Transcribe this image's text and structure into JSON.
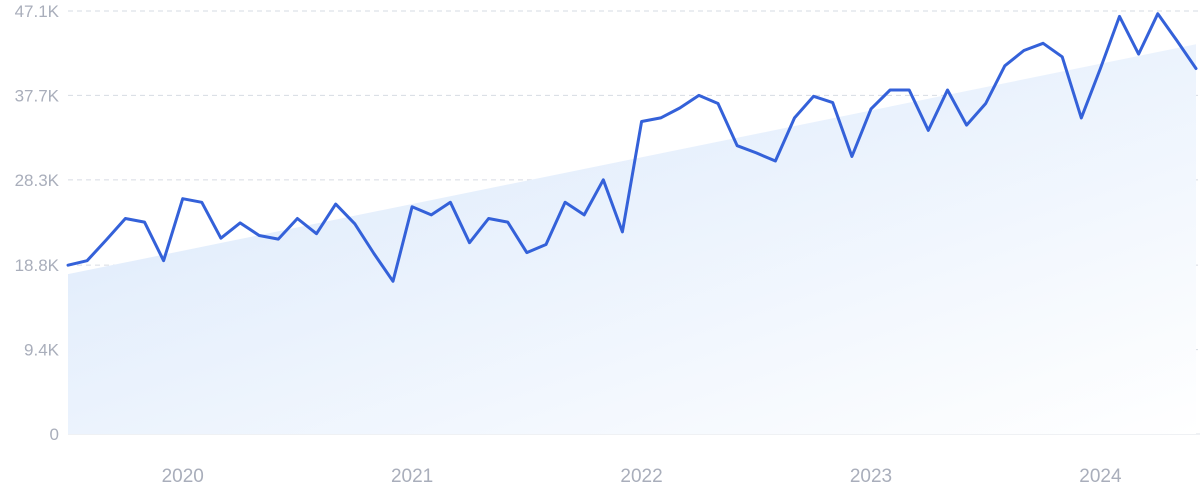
{
  "chart_data": {
    "type": "line",
    "title": "",
    "xlabel": "",
    "ylabel": "",
    "ylim": [
      0,
      47100
    ],
    "xlim": [
      "2019-07",
      "2024-06"
    ],
    "grid": true,
    "y_ticks": [
      {
        "value": 0,
        "label": "0"
      },
      {
        "value": 9400,
        "label": "9.4K"
      },
      {
        "value": 18800,
        "label": "18.8K"
      },
      {
        "value": 28300,
        "label": "28.3K"
      },
      {
        "value": 37700,
        "label": "37.7K"
      },
      {
        "value": 47100,
        "label": "47.1K"
      }
    ],
    "x_ticks": [
      {
        "value": "2020-01",
        "label": "2020"
      },
      {
        "value": "2021-01",
        "label": "2021"
      },
      {
        "value": "2022-01",
        "label": "2022"
      },
      {
        "value": "2023-01",
        "label": "2023"
      },
      {
        "value": "2024-01",
        "label": "2024"
      }
    ],
    "series": [
      {
        "color": "#3461d9",
        "x": [
          "2019-07",
          "2019-08",
          "2019-09",
          "2019-10",
          "2019-11",
          "2019-12",
          "2020-01",
          "2020-02",
          "2020-03",
          "2020-04",
          "2020-05",
          "2020-06",
          "2020-07",
          "2020-08",
          "2020-09",
          "2020-10",
          "2020-11",
          "2020-12",
          "2021-01",
          "2021-02",
          "2021-03",
          "2021-04",
          "2021-05",
          "2021-06",
          "2021-07",
          "2021-08",
          "2021-09",
          "2021-10",
          "2021-11",
          "2021-12",
          "2022-01",
          "2022-02",
          "2022-03",
          "2022-04",
          "2022-05",
          "2022-06",
          "2022-07",
          "2022-08",
          "2022-09",
          "2022-10",
          "2022-11",
          "2022-12",
          "2023-01",
          "2023-02",
          "2023-03",
          "2023-04",
          "2023-05",
          "2023-06",
          "2023-07",
          "2023-08",
          "2023-09",
          "2023-10",
          "2023-11",
          "2023-12",
          "2024-01",
          "2024-02",
          "2024-03",
          "2024-04",
          "2024-05",
          "2024-06"
        ],
        "values": [
          18800,
          19300,
          21600,
          24000,
          23600,
          19300,
          26200,
          25800,
          21800,
          23500,
          22100,
          21700,
          24000,
          22300,
          25600,
          23400,
          20100,
          17000,
          25300,
          24400,
          25800,
          21300,
          24000,
          23600,
          20200,
          21100,
          25800,
          24400,
          28300,
          22500,
          34800,
          35200,
          36300,
          37700,
          36800,
          32100,
          31300,
          30400,
          35200,
          37600,
          36900,
          30900,
          36200,
          38300,
          38300,
          33800,
          38300,
          34400,
          36800,
          41000,
          42700,
          43500,
          42000,
          35200,
          40700,
          46500,
          42300,
          46800,
          43800,
          40700
        ]
      }
    ],
    "trend_area": {
      "color": "#dce9fb",
      "start": {
        "x": "2019-07",
        "value": 17800
      },
      "end": {
        "x": "2024-06",
        "value": 43400
      }
    }
  }
}
